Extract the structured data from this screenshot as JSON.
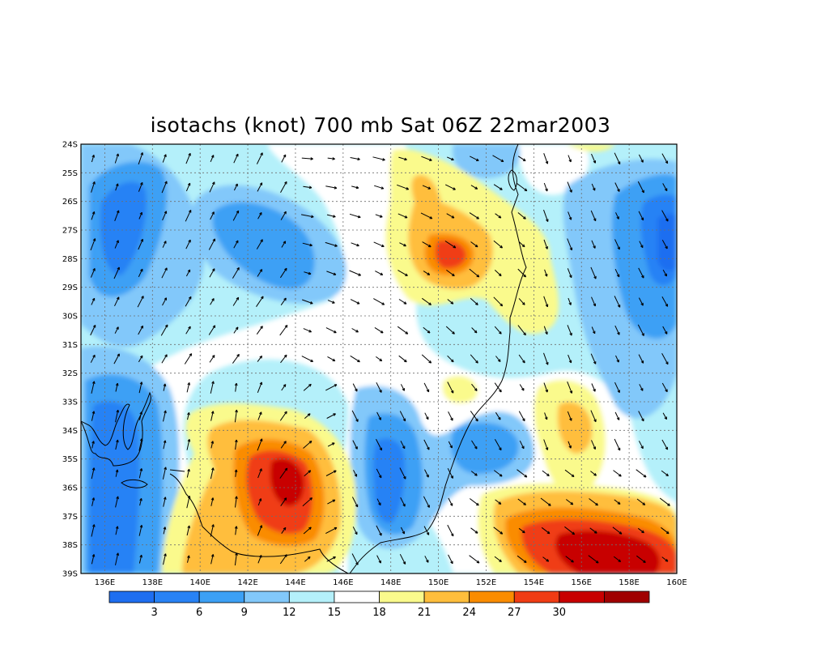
{
  "title": "isotachs (knot) 700 mb Sat 06Z 22mar2003",
  "map": {
    "lon_range": [
      135,
      160
    ],
    "lat_range": [
      -39,
      -24
    ],
    "lon_ticks": [
      "136E",
      "138E",
      "140E",
      "142E",
      "144E",
      "146E",
      "148E",
      "150E",
      "152E",
      "154E",
      "156E",
      "158E",
      "160E"
    ],
    "lat_ticks": [
      "24S",
      "25S",
      "26S",
      "27S",
      "28S",
      "29S",
      "30S",
      "31S",
      "32S",
      "33S",
      "34S",
      "35S",
      "36S",
      "37S",
      "38S",
      "39S"
    ],
    "grid_lines": "dotted",
    "field": "isotachs (knot)",
    "overlay": "wind vectors",
    "coastline": true
  },
  "colorbar": {
    "labels": [
      "3",
      "6",
      "9",
      "12",
      "15",
      "18",
      "21",
      "24",
      "27",
      "30"
    ],
    "colors": [
      "#1e6ef0",
      "#2882f5",
      "#3ca0f5",
      "#82c8fa",
      "#b4f0fa",
      "#ffffff",
      "#fafa8c",
      "#ffbe3c",
      "#fa8c00",
      "#f03c14",
      "#c80000",
      "#a00000"
    ]
  },
  "wind_maxima": [
    {
      "location": "144E 36S",
      "speed_knot": 32
    },
    {
      "location": "156E 38S",
      "speed_knot": 32
    },
    {
      "location": "150E 28S",
      "speed_knot": 28
    }
  ]
}
